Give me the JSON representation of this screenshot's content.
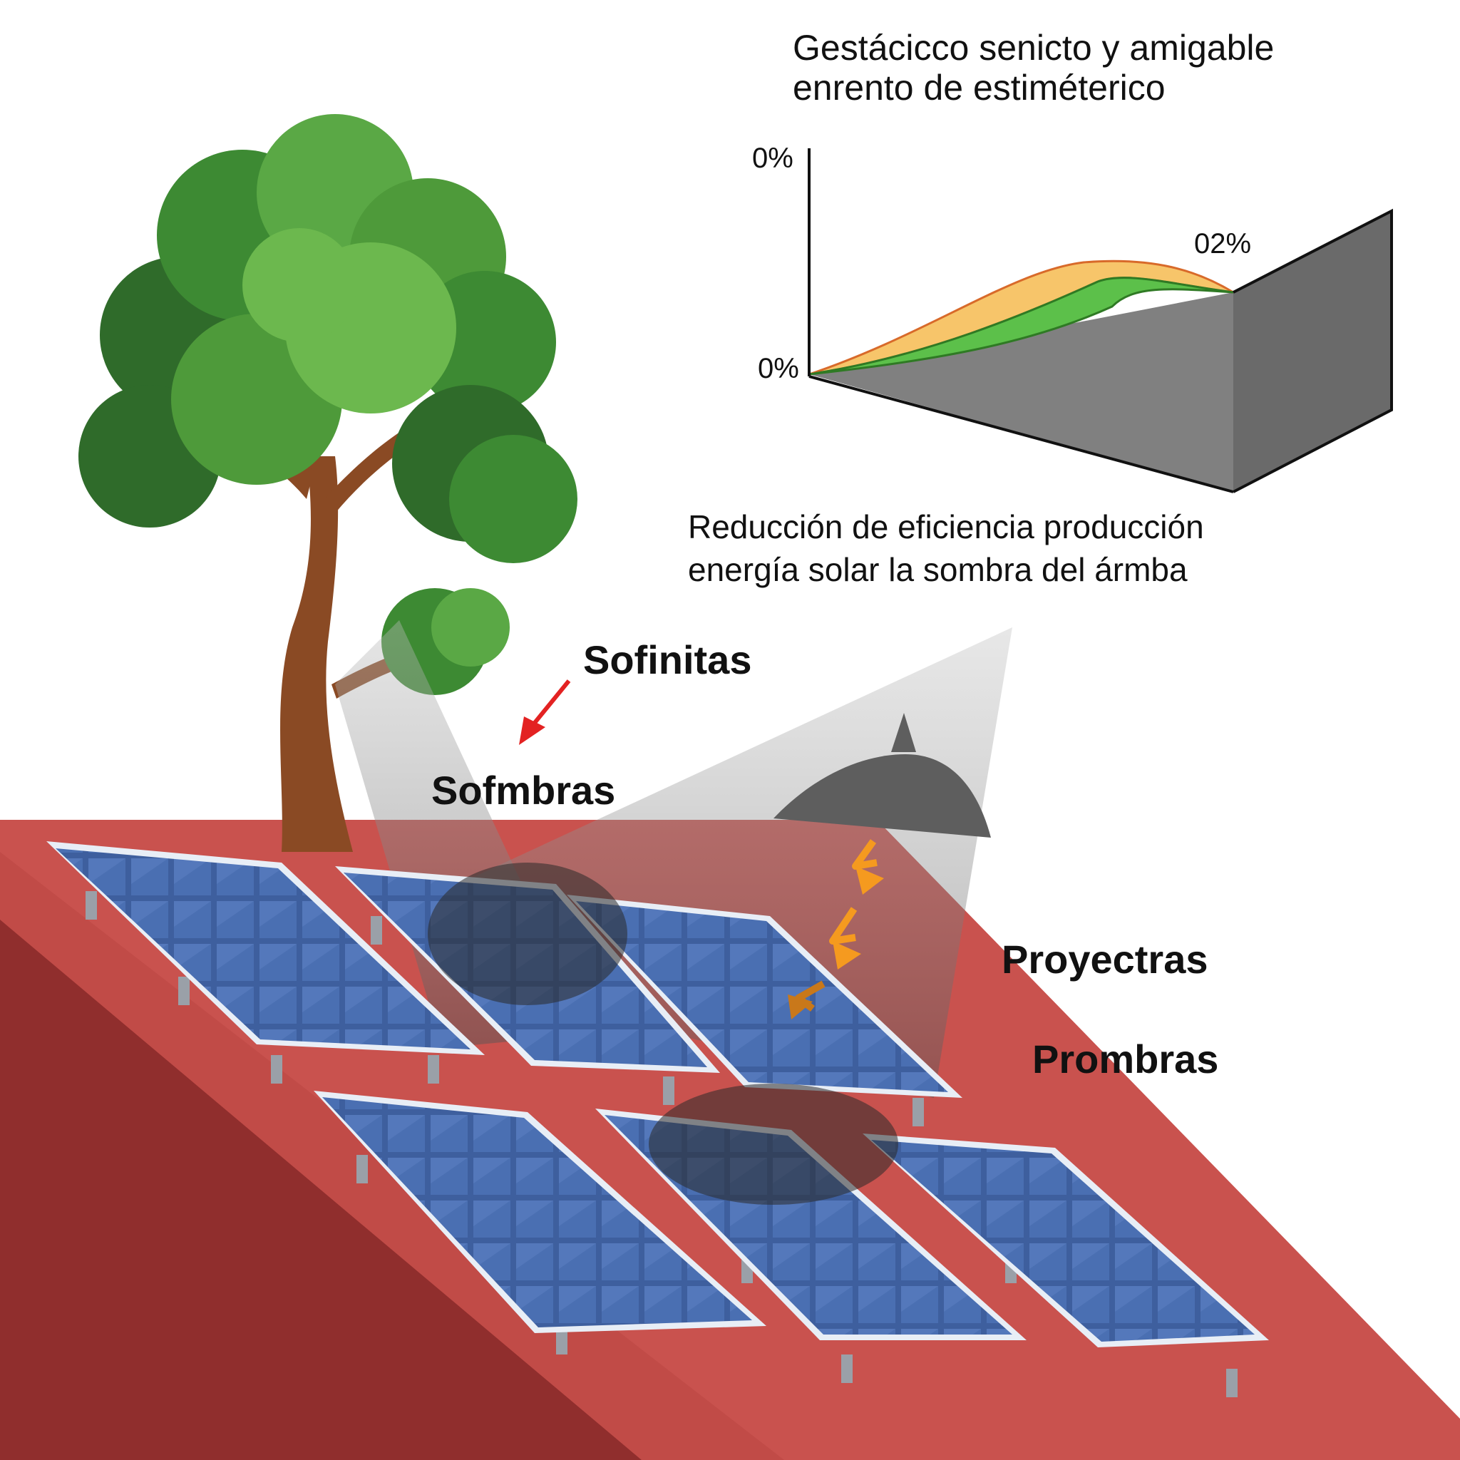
{
  "chart": {
    "title_line1": "Gestácicco senicto y amigable",
    "title_line2": "enrento de estiméterico",
    "y_top_label": "0%",
    "y_bottom_label": "0%",
    "end_label": "02%",
    "caption_line1": "Reducción de eficiencia producción",
    "caption_line2": "energía solar la sombra del ármba"
  },
  "labels": {
    "sofinitas": "Sofinitas",
    "sofmbras": "Sofmbras",
    "proyectras": "Proyectras",
    "prombras": "Prombras"
  },
  "colors": {
    "roof": "#c9524e",
    "roof_dark": "#8a2a2a",
    "panel": "#3e5f9e",
    "panel_frame": "#e8eef6",
    "shadow": "#2a2a2a",
    "curve_orange": "#f7c56a",
    "curve_green": "#5cc04a",
    "chart_block": "#7d7d7d",
    "arrow_red": "#e32222",
    "arrow_orange": "#f59a1f",
    "tree_trunk": "#8a4a24",
    "tree_leaf": "#4e9a3a"
  }
}
